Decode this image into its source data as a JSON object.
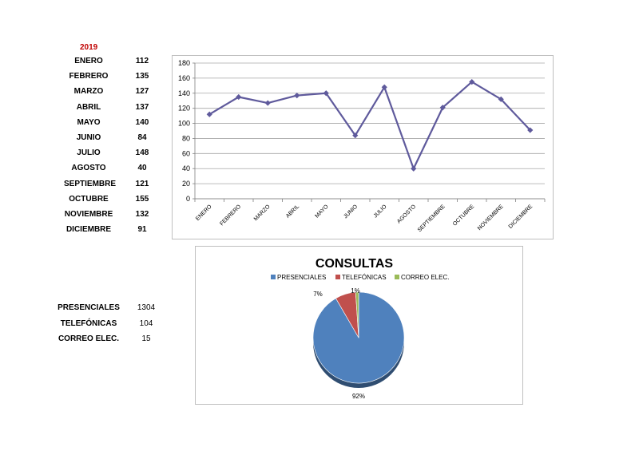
{
  "year_label": "2019",
  "monthly": [
    {
      "month": "ENERO",
      "value": 112
    },
    {
      "month": "FEBRERO",
      "value": 135
    },
    {
      "month": "MARZO",
      "value": 127
    },
    {
      "month": "ABRIL",
      "value": 137
    },
    {
      "month": "MAYO",
      "value": 140
    },
    {
      "month": "JUNIO",
      "value": 84
    },
    {
      "month": "JULIO",
      "value": 148
    },
    {
      "month": "AGOSTO",
      "value": 40
    },
    {
      "month": "SEPTIEMBRE",
      "value": 121
    },
    {
      "month": "OCTUBRE",
      "value": 155
    },
    {
      "month": "NOVIEMBRE",
      "value": 132
    },
    {
      "month": "DICIEMBRE",
      "value": 91
    }
  ],
  "consultas": [
    {
      "name": "PRESENCIALES",
      "value": 1304
    },
    {
      "name": "TELEFÓNICAS",
      "value": 104
    },
    {
      "name": "CORREO ELEC.",
      "value": 15
    }
  ],
  "chart_data": [
    {
      "type": "line",
      "title": "",
      "categories": [
        "ENERO",
        "FEBRERO",
        "MARZO",
        "ABRIL",
        "MAYO",
        "JUNIO",
        "JULIO",
        "AGOSTO",
        "SEPTIEMBRE",
        "OCTUBRE",
        "NOVIEMBRE",
        "DICIEMBRE"
      ],
      "values": [
        112,
        135,
        127,
        137,
        140,
        84,
        148,
        40,
        121,
        155,
        132,
        91
      ],
      "ylim": [
        0,
        180
      ],
      "yticks": [
        0,
        20,
        40,
        60,
        80,
        100,
        120,
        140,
        160,
        180
      ],
      "grid": true,
      "legend": "none",
      "color": "#5f5a9c"
    },
    {
      "type": "pie",
      "title": "CONSULTAS",
      "labels": [
        "PRESENCIALES",
        "TELEFÓNICAS",
        "CORREO ELEC."
      ],
      "values": [
        1304,
        104,
        15
      ],
      "percent_labels": [
        "92%",
        "7%",
        "1%"
      ],
      "colors": [
        "#4f81bd",
        "#c0504d",
        "#9bbb59"
      ],
      "legend": "top"
    }
  ]
}
